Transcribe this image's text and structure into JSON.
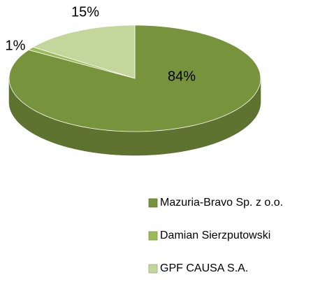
{
  "chart_data": {
    "type": "pie",
    "categories": [
      "Mazuria-Bravo Sp. z o.o.",
      "Damian Sierzputowski",
      "GPF CAUSA S.A."
    ],
    "values": [
      84,
      1,
      15
    ],
    "value_labels": [
      "84%",
      "1%",
      "15%"
    ],
    "colors": [
      "#77933c",
      "#9bbb59",
      "#c3d69b"
    ],
    "legend": "bottom-right"
  }
}
